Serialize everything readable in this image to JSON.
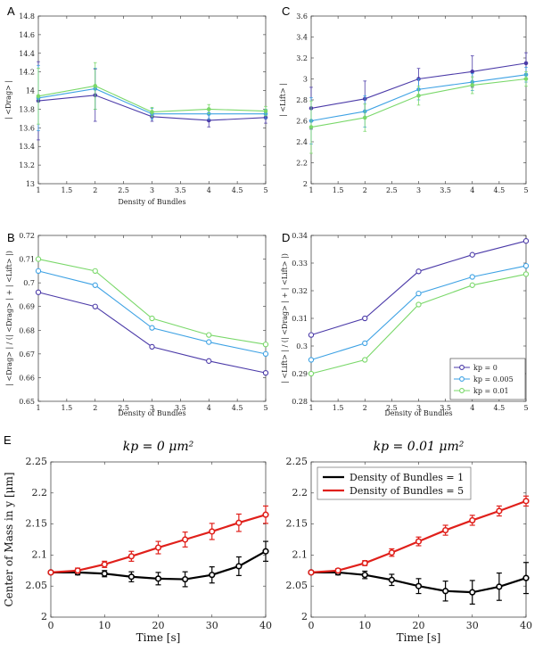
{
  "colors": {
    "kp0": "#4b3aa8",
    "kp005": "#3ea2e4",
    "kp001": "#7ad86a",
    "d1": "#000000",
    "d5": "#e0201b"
  },
  "chart_data": [
    {
      "id": "A",
      "label": "A",
      "type": "line",
      "xlabel": "Density of Bundles",
      "ylabel": "| <Drag> |",
      "xlim": [
        1,
        5
      ],
      "ylim": [
        13,
        14.8
      ],
      "xticks": [
        "1",
        "1.5",
        "2",
        "2.5",
        "3",
        "3.5",
        "4",
        "4.5",
        "5"
      ],
      "yticks": [
        "13",
        "13.2",
        "13.4",
        "13.6",
        "13.8",
        "14",
        "14.2",
        "14.4",
        "14.6",
        "14.8"
      ],
      "x": [
        1,
        2,
        3,
        4,
        5
      ],
      "series": [
        {
          "name": "kp = 0",
          "color_key": "kp0",
          "values": [
            13.89,
            13.95,
            13.72,
            13.68,
            13.71
          ],
          "errors": [
            0.42,
            0.28,
            0.05,
            0.07,
            0.06
          ]
        },
        {
          "name": "kp = 0.005",
          "color_key": "kp005",
          "values": [
            13.92,
            14.02,
            13.75,
            13.75,
            13.75
          ],
          "errors": [
            0.35,
            0.22,
            0.06,
            0.06,
            0.05
          ]
        },
        {
          "name": "kp = 0.01",
          "color_key": "kp001",
          "values": [
            13.94,
            14.05,
            13.77,
            13.8,
            13.78
          ],
          "errors": [
            0.3,
            0.25,
            0.05,
            0.05,
            0.05
          ]
        }
      ]
    },
    {
      "id": "C",
      "label": "C",
      "type": "line",
      "xlabel": "",
      "ylabel": "| <Lift> |",
      "xlim": [
        1,
        5
      ],
      "ylim": [
        2,
        3.6
      ],
      "xticks": [
        "1",
        "1.5",
        "2",
        "2.5",
        "3",
        "3.5",
        "4",
        "4.5",
        "5"
      ],
      "yticks": [
        "2",
        "2.2",
        "2.4",
        "2.6",
        "2.8",
        "3",
        "3.2",
        "3.4",
        "3.6"
      ],
      "x": [
        1,
        2,
        3,
        4,
        5
      ],
      "series": [
        {
          "name": "kp = 0",
          "color_key": "kp0",
          "values": [
            2.72,
            2.81,
            3.0,
            3.07,
            3.15
          ],
          "errors": [
            0.2,
            0.17,
            0.1,
            0.15,
            0.1
          ]
        },
        {
          "name": "kp = 0.005",
          "color_key": "kp005",
          "values": [
            2.6,
            2.69,
            2.9,
            2.97,
            3.04
          ],
          "errors": [
            0.22,
            0.15,
            0.1,
            0.08,
            0.07
          ]
        },
        {
          "name": "kp = 0.01",
          "color_key": "kp001",
          "values": [
            2.54,
            2.63,
            2.84,
            2.94,
            3.0
          ],
          "errors": [
            0.25,
            0.13,
            0.09,
            0.08,
            0.07
          ]
        }
      ]
    },
    {
      "id": "B",
      "label": "B",
      "type": "line",
      "xlabel": "Density of Bundles",
      "ylabel": "| <Drag> | / (| <Drag> | + | <Lift> |)",
      "xlim": [
        1,
        5
      ],
      "ylim": [
        0.65,
        0.72
      ],
      "xticks": [
        "1",
        "1.5",
        "2",
        "2.5",
        "3",
        "3.5",
        "4",
        "4.5",
        "5"
      ],
      "yticks": [
        "0.65",
        "0.66",
        "0.67",
        "0.68",
        "0.69",
        "0.7",
        "0.71",
        "0.72"
      ],
      "x": [
        1,
        2,
        3,
        4,
        5
      ],
      "series": [
        {
          "name": "kp = 0",
          "color_key": "kp0",
          "values": [
            0.696,
            0.69,
            0.673,
            0.667,
            0.662
          ]
        },
        {
          "name": "kp = 0.005",
          "color_key": "kp005",
          "values": [
            0.705,
            0.699,
            0.681,
            0.675,
            0.67
          ]
        },
        {
          "name": "kp = 0.01",
          "color_key": "kp001",
          "values": [
            0.71,
            0.705,
            0.685,
            0.678,
            0.674
          ]
        }
      ]
    },
    {
      "id": "D",
      "label": "D",
      "type": "line",
      "xlabel": "Density of Bundles",
      "ylabel": "| <Lift> | / (| <Drag> | + | <Lift> |)",
      "xlim": [
        1,
        5
      ],
      "ylim": [
        0.28,
        0.34
      ],
      "xticks": [
        "1",
        "1.5",
        "2",
        "2.5",
        "3",
        "3.5",
        "4",
        "4.5",
        "5"
      ],
      "yticks": [
        "0.28",
        "0.29",
        "0.3",
        "0.31",
        "0.32",
        "0.33",
        "0.34"
      ],
      "x": [
        1,
        2,
        3,
        4,
        5
      ],
      "series": [
        {
          "name": "kp = 0",
          "color_key": "kp0",
          "values": [
            0.304,
            0.31,
            0.327,
            0.333,
            0.338
          ]
        },
        {
          "name": "kp = 0.005",
          "color_key": "kp005",
          "values": [
            0.295,
            0.301,
            0.319,
            0.325,
            0.329
          ]
        },
        {
          "name": "kp = 0.01",
          "color_key": "kp001",
          "values": [
            0.29,
            0.295,
            0.315,
            0.322,
            0.326
          ]
        }
      ],
      "legend": {
        "placement": "bottom-right",
        "entries": [
          "kp = 0",
          "kp = 0.005",
          "kp = 0.01"
        ]
      }
    },
    {
      "id": "E1",
      "label": "E",
      "type": "line",
      "title": "kp = 0 μm²",
      "xlabel": "Time [s]",
      "ylabel": "Center of Mass in y [μm]",
      "xlim": [
        0,
        40
      ],
      "ylim": [
        2,
        2.25
      ],
      "xticks": [
        "0",
        "10",
        "20",
        "30",
        "40"
      ],
      "yticks": [
        "2",
        "2.05",
        "2.1",
        "2.15",
        "2.2",
        "2.25"
      ],
      "x": [
        0,
        5,
        10,
        15,
        20,
        25,
        30,
        35,
        40
      ],
      "series": [
        {
          "name": "Density of Bundles = 1",
          "color_key": "d1",
          "values": [
            2.072,
            2.072,
            2.07,
            2.065,
            2.062,
            2.061,
            2.068,
            2.082,
            2.106
          ],
          "errors": [
            0.002,
            0.004,
            0.005,
            0.008,
            0.01,
            0.012,
            0.013,
            0.015,
            0.016
          ]
        },
        {
          "name": "Density of Bundles = 5",
          "color_key": "d5",
          "values": [
            2.072,
            2.075,
            2.085,
            2.098,
            2.112,
            2.125,
            2.138,
            2.152,
            2.165
          ],
          "errors": [
            0.002,
            0.004,
            0.005,
            0.008,
            0.01,
            0.012,
            0.013,
            0.014,
            0.014
          ]
        }
      ]
    },
    {
      "id": "E2",
      "label": "",
      "type": "line",
      "title": "kp = 0.01 μm²",
      "xlabel": "Time [s]",
      "ylabel": "",
      "xlim": [
        0,
        40
      ],
      "ylim": [
        2,
        2.25
      ],
      "xticks": [
        "0",
        "10",
        "20",
        "30",
        "40"
      ],
      "yticks": [
        "2",
        "2.05",
        "2.1",
        "2.15",
        "2.2",
        "2.25"
      ],
      "x": [
        0,
        5,
        10,
        15,
        20,
        25,
        30,
        35,
        40
      ],
      "series": [
        {
          "name": "Density of Bundles = 1",
          "color_key": "d1",
          "values": [
            2.072,
            2.072,
            2.068,
            2.06,
            2.05,
            2.042,
            2.04,
            2.049,
            2.063
          ],
          "errors": [
            0.002,
            0.004,
            0.006,
            0.009,
            0.012,
            0.016,
            0.019,
            0.022,
            0.025
          ]
        },
        {
          "name": "Density of Bundles = 5",
          "color_key": "d5",
          "values": [
            2.072,
            2.075,
            2.087,
            2.104,
            2.122,
            2.14,
            2.156,
            2.171,
            2.187
          ],
          "errors": [
            0.002,
            0.003,
            0.004,
            0.006,
            0.007,
            0.008,
            0.008,
            0.008,
            0.008
          ]
        }
      ],
      "legend": {
        "placement": "top-left",
        "entries": [
          "Density of Bundles = 1",
          "Density of Bundles = 5"
        ]
      }
    }
  ]
}
